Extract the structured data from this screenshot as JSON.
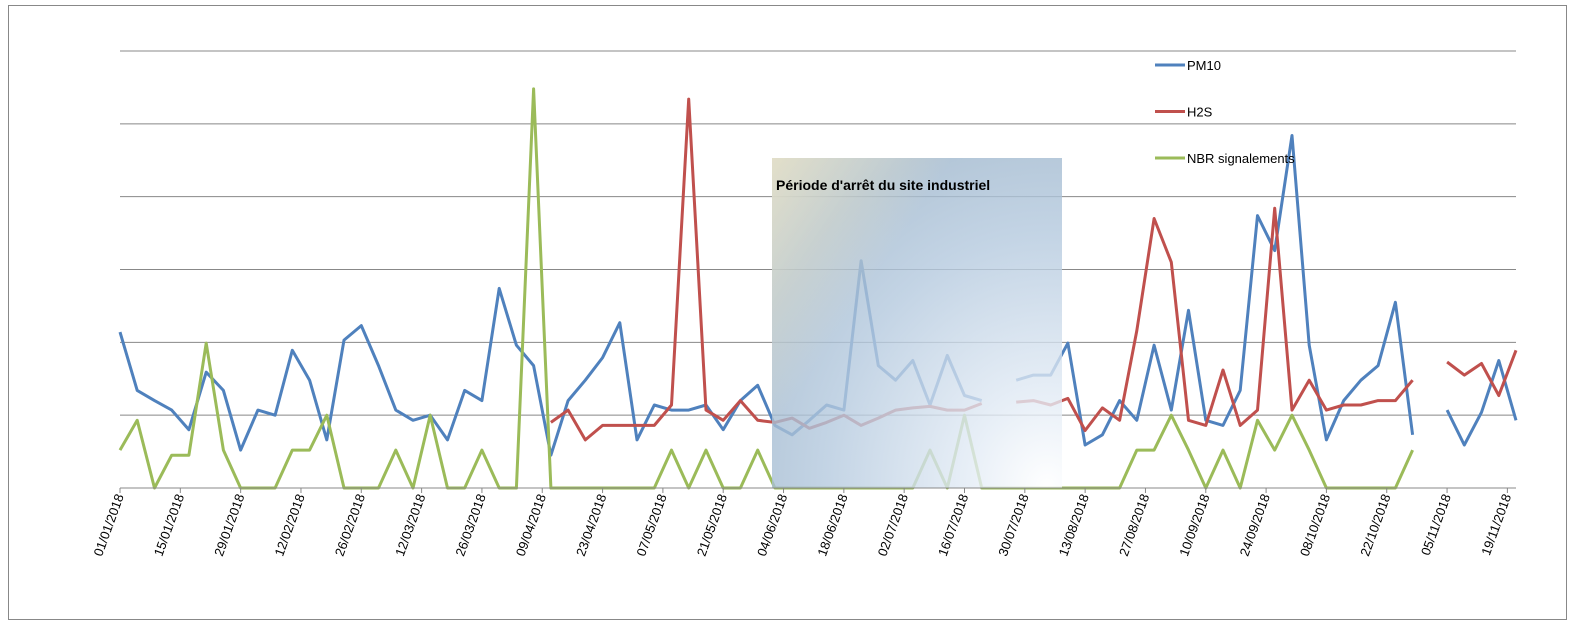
{
  "chart_data": {
    "type": "line",
    "annotations": [
      "Période d'arrêt du site industriel"
    ],
    "x": [
      "01/01/2018",
      "05/01/2018",
      "09/01/2018",
      "13/01/2018",
      "17/01/2018",
      "21/01/2018",
      "25/01/2018",
      "29/01/2018",
      "02/02/2018",
      "06/02/2018",
      "10/02/2018",
      "14/02/2018",
      "18/02/2018",
      "22/02/2018",
      "26/02/2018",
      "02/03/2018",
      "06/03/2018",
      "10/03/2018",
      "14/03/2018",
      "18/03/2018",
      "22/03/2018",
      "26/03/2018",
      "30/03/2018",
      "03/04/2018",
      "07/04/2018",
      "11/04/2018",
      "15/04/2018",
      "19/04/2018",
      "23/04/2018",
      "27/04/2018",
      "01/05/2018",
      "05/05/2018",
      "09/05/2018",
      "13/05/2018",
      "17/05/2018",
      "21/05/2018",
      "25/05/2018",
      "29/05/2018",
      "02/06/2018",
      "06/06/2018",
      "10/06/2018",
      "14/06/2018",
      "18/06/2018",
      "22/06/2018",
      "26/06/2018",
      "30/06/2018",
      "04/07/2018",
      "08/07/2018",
      "12/07/2018",
      "16/07/2018",
      "20/07/2018",
      "24/07/2018",
      "28/07/2018",
      "01/08/2018",
      "05/08/2018",
      "09/08/2018",
      "13/08/2018",
      "17/08/2018",
      "21/08/2018",
      "25/08/2018",
      "29/08/2018",
      "02/09/2018",
      "06/09/2018",
      "10/09/2018",
      "14/09/2018",
      "18/09/2018",
      "22/09/2018",
      "26/09/2018",
      "30/09/2018",
      "04/10/2018",
      "08/10/2018",
      "12/10/2018",
      "16/10/2018",
      "20/10/2018",
      "24/10/2018",
      "28/10/2018",
      "01/11/2018",
      "05/11/2018",
      "09/11/2018",
      "13/11/2018",
      "17/11/2018",
      "21/11/2018"
    ],
    "series": [
      {
        "name": "PM10",
        "color": "#4f81bd",
        "values": [
          2.14,
          1.34,
          1.2,
          1.07,
          0.8,
          1.59,
          1.34,
          0.52,
          1.07,
          1.0,
          1.89,
          1.48,
          0.66,
          2.03,
          2.23,
          1.68,
          1.07,
          0.93,
          1.0,
          0.66,
          1.34,
          1.2,
          2.74,
          1.96,
          1.68,
          0.45,
          1.2,
          1.48,
          1.79,
          2.27,
          0.66,
          1.14,
          1.07,
          1.07,
          1.14,
          0.8,
          1.2,
          1.41,
          0.86,
          0.73,
          0.93,
          1.14,
          1.07,
          3.12,
          1.68,
          1.48,
          1.75,
          1.14,
          1.82,
          1.27,
          1.2,
          null,
          1.48,
          1.55,
          1.55,
          1.99,
          0.59,
          0.73,
          1.2,
          0.93,
          1.96,
          1.07,
          2.44,
          0.93,
          0.86,
          1.34,
          3.74,
          3.26,
          4.84,
          1.96,
          0.66,
          1.2,
          1.48,
          1.68,
          2.55,
          0.73,
          null,
          1.07,
          0.59,
          1.04,
          1.75,
          0.93
        ]
      },
      {
        "name": "H2S",
        "color": "#c0504d",
        "values": [
          null,
          null,
          null,
          null,
          null,
          null,
          null,
          null,
          null,
          null,
          null,
          null,
          null,
          null,
          null,
          null,
          null,
          null,
          null,
          null,
          null,
          null,
          null,
          null,
          null,
          0.9,
          1.07,
          0.66,
          0.86,
          0.86,
          0.86,
          0.86,
          1.14,
          5.34,
          1.07,
          0.93,
          1.2,
          0.93,
          0.9,
          0.96,
          0.82,
          0.9,
          1.0,
          0.86,
          0.96,
          1.07,
          1.1,
          1.12,
          1.07,
          1.07,
          1.16,
          null,
          1.18,
          1.2,
          1.14,
          1.23,
          0.79,
          1.1,
          0.93,
          2.16,
          3.7,
          3.1,
          0.93,
          0.86,
          1.62,
          0.86,
          1.07,
          3.84,
          1.07,
          1.48,
          1.07,
          1.14,
          1.14,
          1.2,
          1.2,
          1.48,
          null,
          1.73,
          1.55,
          1.71,
          1.27,
          1.89
        ]
      },
      {
        "name": "NBR signalements",
        "color": "#9bbb59",
        "values": [
          0.52,
          0.93,
          0,
          0.45,
          0.45,
          1.99,
          0.52,
          0,
          0,
          0,
          0.52,
          0.52,
          1.0,
          0,
          0,
          0,
          0.52,
          0,
          1.0,
          0,
          0,
          0.52,
          0,
          0,
          5.48,
          0,
          0,
          0,
          0,
          0,
          0,
          0,
          0.52,
          0,
          0.52,
          0,
          0,
          0.52,
          0,
          0,
          0,
          0,
          0,
          0,
          0,
          0,
          0,
          0.52,
          0,
          1.0,
          0,
          0,
          0,
          0,
          0,
          0,
          0,
          0,
          0,
          0.52,
          0.52,
          1.0,
          0.52,
          0,
          0.52,
          0,
          0.93,
          0.52,
          1.0,
          0.52,
          0,
          0,
          0,
          0,
          0,
          0.52,
          null,
          null,
          null,
          null,
          null,
          null
        ]
      }
    ],
    "xlim": [
      "01/01/2018",
      "21/11/2018"
    ],
    "xticks": [
      "01/01/2018",
      "15/01/2018",
      "29/01/2018",
      "12/02/2018",
      "26/02/2018",
      "12/03/2018",
      "26/03/2018",
      "09/04/2018",
      "23/04/2018",
      "07/05/2018",
      "21/05/2018",
      "04/06/2018",
      "18/06/2018",
      "02/07/2018",
      "16/07/2018",
      "30/07/2018",
      "13/08/2018",
      "27/08/2018",
      "10/09/2018",
      "24/09/2018",
      "08/10/2018",
      "22/10/2018",
      "05/11/2018",
      "19/11/2018"
    ],
    "ylim": [
      0,
      6
    ],
    "yticks": [
      0,
      1,
      2,
      3,
      4,
      5,
      6
    ],
    "grid": true,
    "legend": "top-right"
  }
}
